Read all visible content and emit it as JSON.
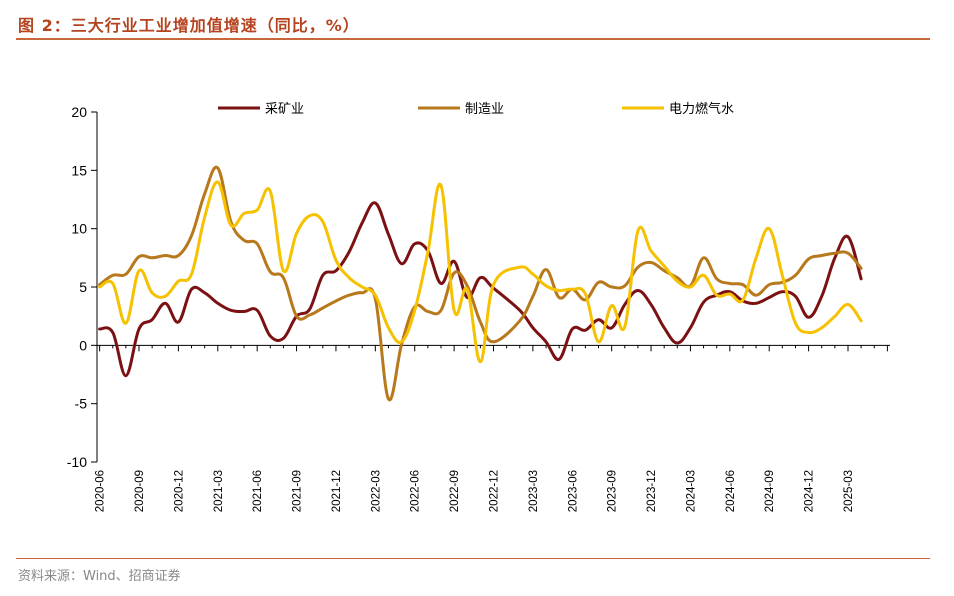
{
  "figure": {
    "title": "图 2：三大行业工业增加值增速（同比，%）",
    "source": "资料来源：Wind、招商证券"
  },
  "chart_data": {
    "type": "line",
    "ylim": [
      -10,
      20
    ],
    "yticks": [
      -10,
      -5,
      0,
      5,
      10,
      15,
      20
    ],
    "xlim": [
      "2020-06",
      "2025-05"
    ],
    "xticks": [
      "2020-06",
      "2020-09",
      "2020-12",
      "2021-03",
      "2021-06",
      "2021-09",
      "2021-12",
      "2022-03",
      "2022-06",
      "2022-09",
      "2022-12",
      "2023-03",
      "2023-06",
      "2023-09",
      "2023-12",
      "2024-03",
      "2024-06",
      "2024-09",
      "2024-12",
      "2025-03"
    ],
    "legend_position": "top",
    "grid": false,
    "series": [
      {
        "name": "采矿业",
        "color": "#7b1113",
        "points": [
          [
            "2020-06",
            1.4
          ],
          [
            "2020-07",
            1.1
          ],
          [
            "2020-08",
            -2.6
          ],
          [
            "2020-09",
            1.4
          ],
          [
            "2020-10",
            2.2
          ],
          [
            "2020-11",
            3.6
          ],
          [
            "2020-12",
            2.0
          ],
          [
            "2021-01",
            4.8
          ],
          [
            "2021-02",
            4.5
          ],
          [
            "2021-03",
            3.6
          ],
          [
            "2021-04",
            3.0
          ],
          [
            "2021-05",
            2.9
          ],
          [
            "2021-06",
            3.0
          ],
          [
            "2021-07",
            0.8
          ],
          [
            "2021-08",
            0.6
          ],
          [
            "2021-09",
            2.5
          ],
          [
            "2021-10",
            3.1
          ],
          [
            "2021-11",
            6.0
          ],
          [
            "2021-12",
            6.4
          ],
          [
            "2021-13",
            8.0
          ],
          [
            "2022-02",
            10.5
          ],
          [
            "2022-03",
            12.2
          ],
          [
            "2022-04",
            9.5
          ],
          [
            "2022-05",
            7.0
          ],
          [
            "2022-06",
            8.7
          ],
          [
            "2022-07",
            8.1
          ],
          [
            "2022-08",
            5.3
          ],
          [
            "2022-09",
            7.2
          ],
          [
            "2022-10",
            4.1
          ],
          [
            "2022-11",
            5.8
          ],
          [
            "2022-12",
            4.9
          ],
          [
            "2023-02",
            3.0
          ],
          [
            "2023-03",
            1.5
          ],
          [
            "2023-04",
            0.3
          ],
          [
            "2023-05",
            -1.2
          ],
          [
            "2023-06",
            1.4
          ],
          [
            "2023-07",
            1.3
          ],
          [
            "2023-08",
            2.2
          ],
          [
            "2023-09",
            1.5
          ],
          [
            "2023-10",
            3.5
          ],
          [
            "2023-11",
            4.7
          ],
          [
            "2023-12",
            3.5
          ],
          [
            "2024-01",
            1.5
          ],
          [
            "2024-02",
            0.2
          ],
          [
            "2024-03",
            1.5
          ],
          [
            "2024-04",
            3.7
          ],
          [
            "2024-05",
            4.3
          ],
          [
            "2024-06",
            4.6
          ],
          [
            "2024-07",
            3.8
          ],
          [
            "2024-08",
            3.6
          ],
          [
            "2024-09",
            4.1
          ],
          [
            "2024-10",
            4.6
          ],
          [
            "2024-11",
            4.2
          ],
          [
            "2024-12",
            2.4
          ],
          [
            "2025-01",
            4.2
          ],
          [
            "2025-02",
            7.5
          ],
          [
            "2025-03",
            9.3
          ],
          [
            "2025-04",
            5.7
          ]
        ]
      },
      {
        "name": "制造业",
        "color": "#b8781c",
        "points": [
          [
            "2020-06",
            5.2
          ],
          [
            "2020-07",
            6.0
          ],
          [
            "2020-08",
            6.1
          ],
          [
            "2020-09",
            7.6
          ],
          [
            "2020-10",
            7.5
          ],
          [
            "2020-11",
            7.7
          ],
          [
            "2020-12",
            7.7
          ],
          [
            "2021-01",
            9.4
          ],
          [
            "2021-02",
            13.0
          ],
          [
            "2021-03",
            15.2
          ],
          [
            "2021-04",
            10.6
          ],
          [
            "2021-05",
            9.0
          ],
          [
            "2021-06",
            8.7
          ],
          [
            "2021-07",
            6.3
          ],
          [
            "2021-08",
            5.8
          ],
          [
            "2021-09",
            2.5
          ],
          [
            "2021-10",
            2.6
          ],
          [
            "2021-11",
            3.2
          ],
          [
            "2021-12",
            3.8
          ],
          [
            "2022-01",
            4.3
          ],
          [
            "2022-02",
            4.5
          ],
          [
            "2022-03",
            4.0
          ],
          [
            "2022-04",
            -4.6
          ],
          [
            "2022-05",
            0.1
          ],
          [
            "2022-06",
            3.3
          ],
          [
            "2022-07",
            2.9
          ],
          [
            "2022-08",
            3.0
          ],
          [
            "2022-09",
            6.2
          ],
          [
            "2022-10",
            5.1
          ],
          [
            "2022-11",
            2.0
          ],
          [
            "2022-12",
            0.3
          ],
          [
            "2023-02",
            2.1
          ],
          [
            "2023-03",
            4.2
          ],
          [
            "2023-04",
            6.5
          ],
          [
            "2023-05",
            4.1
          ],
          [
            "2023-06",
            4.8
          ],
          [
            "2023-07",
            3.9
          ],
          [
            "2023-08",
            5.4
          ],
          [
            "2023-09",
            5.0
          ],
          [
            "2023-10",
            5.1
          ],
          [
            "2023-11",
            6.7
          ],
          [
            "2023-12",
            7.1
          ],
          [
            "2024-01",
            6.4
          ],
          [
            "2024-02",
            5.8
          ],
          [
            "2024-03",
            5.1
          ],
          [
            "2024-04",
            7.5
          ],
          [
            "2024-05",
            5.7
          ],
          [
            "2024-06",
            5.3
          ],
          [
            "2024-07",
            5.2
          ],
          [
            "2024-08",
            4.3
          ],
          [
            "2024-09",
            5.2
          ],
          [
            "2024-10",
            5.4
          ],
          [
            "2024-11",
            6.0
          ],
          [
            "2024-12",
            7.4
          ],
          [
            "2025-01",
            7.7
          ],
          [
            "2025-02",
            7.9
          ],
          [
            "2025-03",
            7.9
          ],
          [
            "2025-04",
            6.6
          ]
        ]
      },
      {
        "name": "电力燃气水",
        "color": "#f5c100",
        "points": [
          [
            "2020-06",
            5.0
          ],
          [
            "2020-07",
            5.3
          ],
          [
            "2020-08",
            1.9
          ],
          [
            "2020-09",
            6.4
          ],
          [
            "2020-10",
            4.5
          ],
          [
            "2020-11",
            4.2
          ],
          [
            "2020-12",
            5.5
          ],
          [
            "2021-01",
            6.1
          ],
          [
            "2021-02",
            11.0
          ],
          [
            "2021-03",
            14.0
          ],
          [
            "2021-04",
            10.3
          ],
          [
            "2021-05",
            11.3
          ],
          [
            "2021-06",
            11.6
          ],
          [
            "2021-07",
            13.2
          ],
          [
            "2021-08",
            6.4
          ],
          [
            "2021-09",
            9.6
          ],
          [
            "2021-10",
            11.1
          ],
          [
            "2021-11",
            10.6
          ],
          [
            "2021-12",
            7.3
          ],
          [
            "2022-01",
            5.8
          ],
          [
            "2022-02",
            5.0
          ],
          [
            "2022-03",
            4.3
          ],
          [
            "2022-04",
            1.5
          ],
          [
            "2022-05",
            0.3
          ],
          [
            "2022-06",
            3.0
          ],
          [
            "2022-07",
            8.0
          ],
          [
            "2022-08",
            13.7
          ],
          [
            "2022-09",
            3.0
          ],
          [
            "2022-10",
            4.8
          ],
          [
            "2022-11",
            -1.4
          ],
          [
            "2022-12",
            5.2
          ],
          [
            "2023-02",
            6.7
          ],
          [
            "2023-03",
            6.1
          ],
          [
            "2023-04",
            5.1
          ],
          [
            "2023-05",
            4.7
          ],
          [
            "2023-06",
            4.8
          ],
          [
            "2023-07",
            4.4
          ],
          [
            "2023-08",
            0.3
          ],
          [
            "2023-09",
            3.4
          ],
          [
            "2023-10",
            1.6
          ],
          [
            "2023-11",
            9.8
          ],
          [
            "2023-12",
            8.1
          ],
          [
            "2024-01",
            6.8
          ],
          [
            "2024-02",
            5.5
          ],
          [
            "2024-03",
            5.0
          ],
          [
            "2024-04",
            6.0
          ],
          [
            "2024-05",
            4.3
          ],
          [
            "2024-06",
            4.4
          ],
          [
            "2024-07",
            3.9
          ],
          [
            "2024-08",
            7.5
          ],
          [
            "2024-09",
            10.0
          ],
          [
            "2024-10",
            6.0
          ],
          [
            "2024-11",
            1.9
          ],
          [
            "2024-12",
            1.1
          ],
          [
            "2025-01",
            1.5
          ],
          [
            "2025-02",
            2.5
          ],
          [
            "2025-03",
            3.5
          ],
          [
            "2025-04",
            2.1
          ]
        ]
      }
    ]
  }
}
